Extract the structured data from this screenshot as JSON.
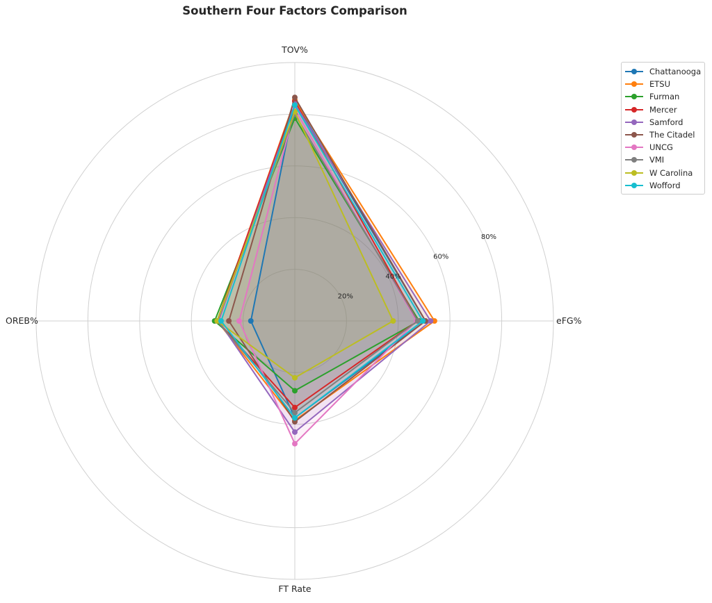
{
  "chart_data": {
    "type": "radar",
    "title": "Southern Four Factors Comparison",
    "axes": [
      "eFG%",
      "TOV%",
      "OREB%",
      "FT Rate"
    ],
    "radial_ticks": [
      {
        "value": 20,
        "label": "20%"
      },
      {
        "value": 40,
        "label": "40%"
      },
      {
        "value": 60,
        "label": "60%"
      },
      {
        "value": 80,
        "label": "80%"
      }
    ],
    "rmax": 100,
    "grid": true,
    "legend_position": "upper right",
    "series": [
      {
        "name": "Chattanooga",
        "color": "#1f77b4",
        "values": [
          50.5,
          85.0,
          17.0,
          37.5
        ]
      },
      {
        "name": "ETSU",
        "color": "#ff7f0e",
        "values": [
          54.0,
          85.5,
          30.0,
          38.5
        ]
      },
      {
        "name": "Furman",
        "color": "#2ca02c",
        "values": [
          48.0,
          78.5,
          31.0,
          27.0
        ]
      },
      {
        "name": "Mercer",
        "color": "#d62728",
        "values": [
          47.5,
          85.0,
          30.0,
          33.5
        ]
      },
      {
        "name": "Samford",
        "color": "#9467bd",
        "values": [
          52.5,
          84.0,
          29.5,
          43.0
        ]
      },
      {
        "name": "The Citadel",
        "color": "#8c564b",
        "values": [
          50.5,
          86.5,
          25.5,
          39.0
        ]
      },
      {
        "name": "UNCG",
        "color": "#e377c2",
        "values": [
          47.0,
          82.0,
          21.5,
          47.5
        ]
      },
      {
        "name": "VMI",
        "color": "#7f7f7f",
        "values": [
          47.5,
          80.0,
          30.0,
          35.5
        ]
      },
      {
        "name": "W Carolina",
        "color": "#bcbd22",
        "values": [
          38.0,
          81.0,
          30.0,
          22.0
        ]
      },
      {
        "name": "Wofford",
        "color": "#17becf",
        "values": [
          49.5,
          83.5,
          28.5,
          37.5
        ]
      }
    ]
  }
}
